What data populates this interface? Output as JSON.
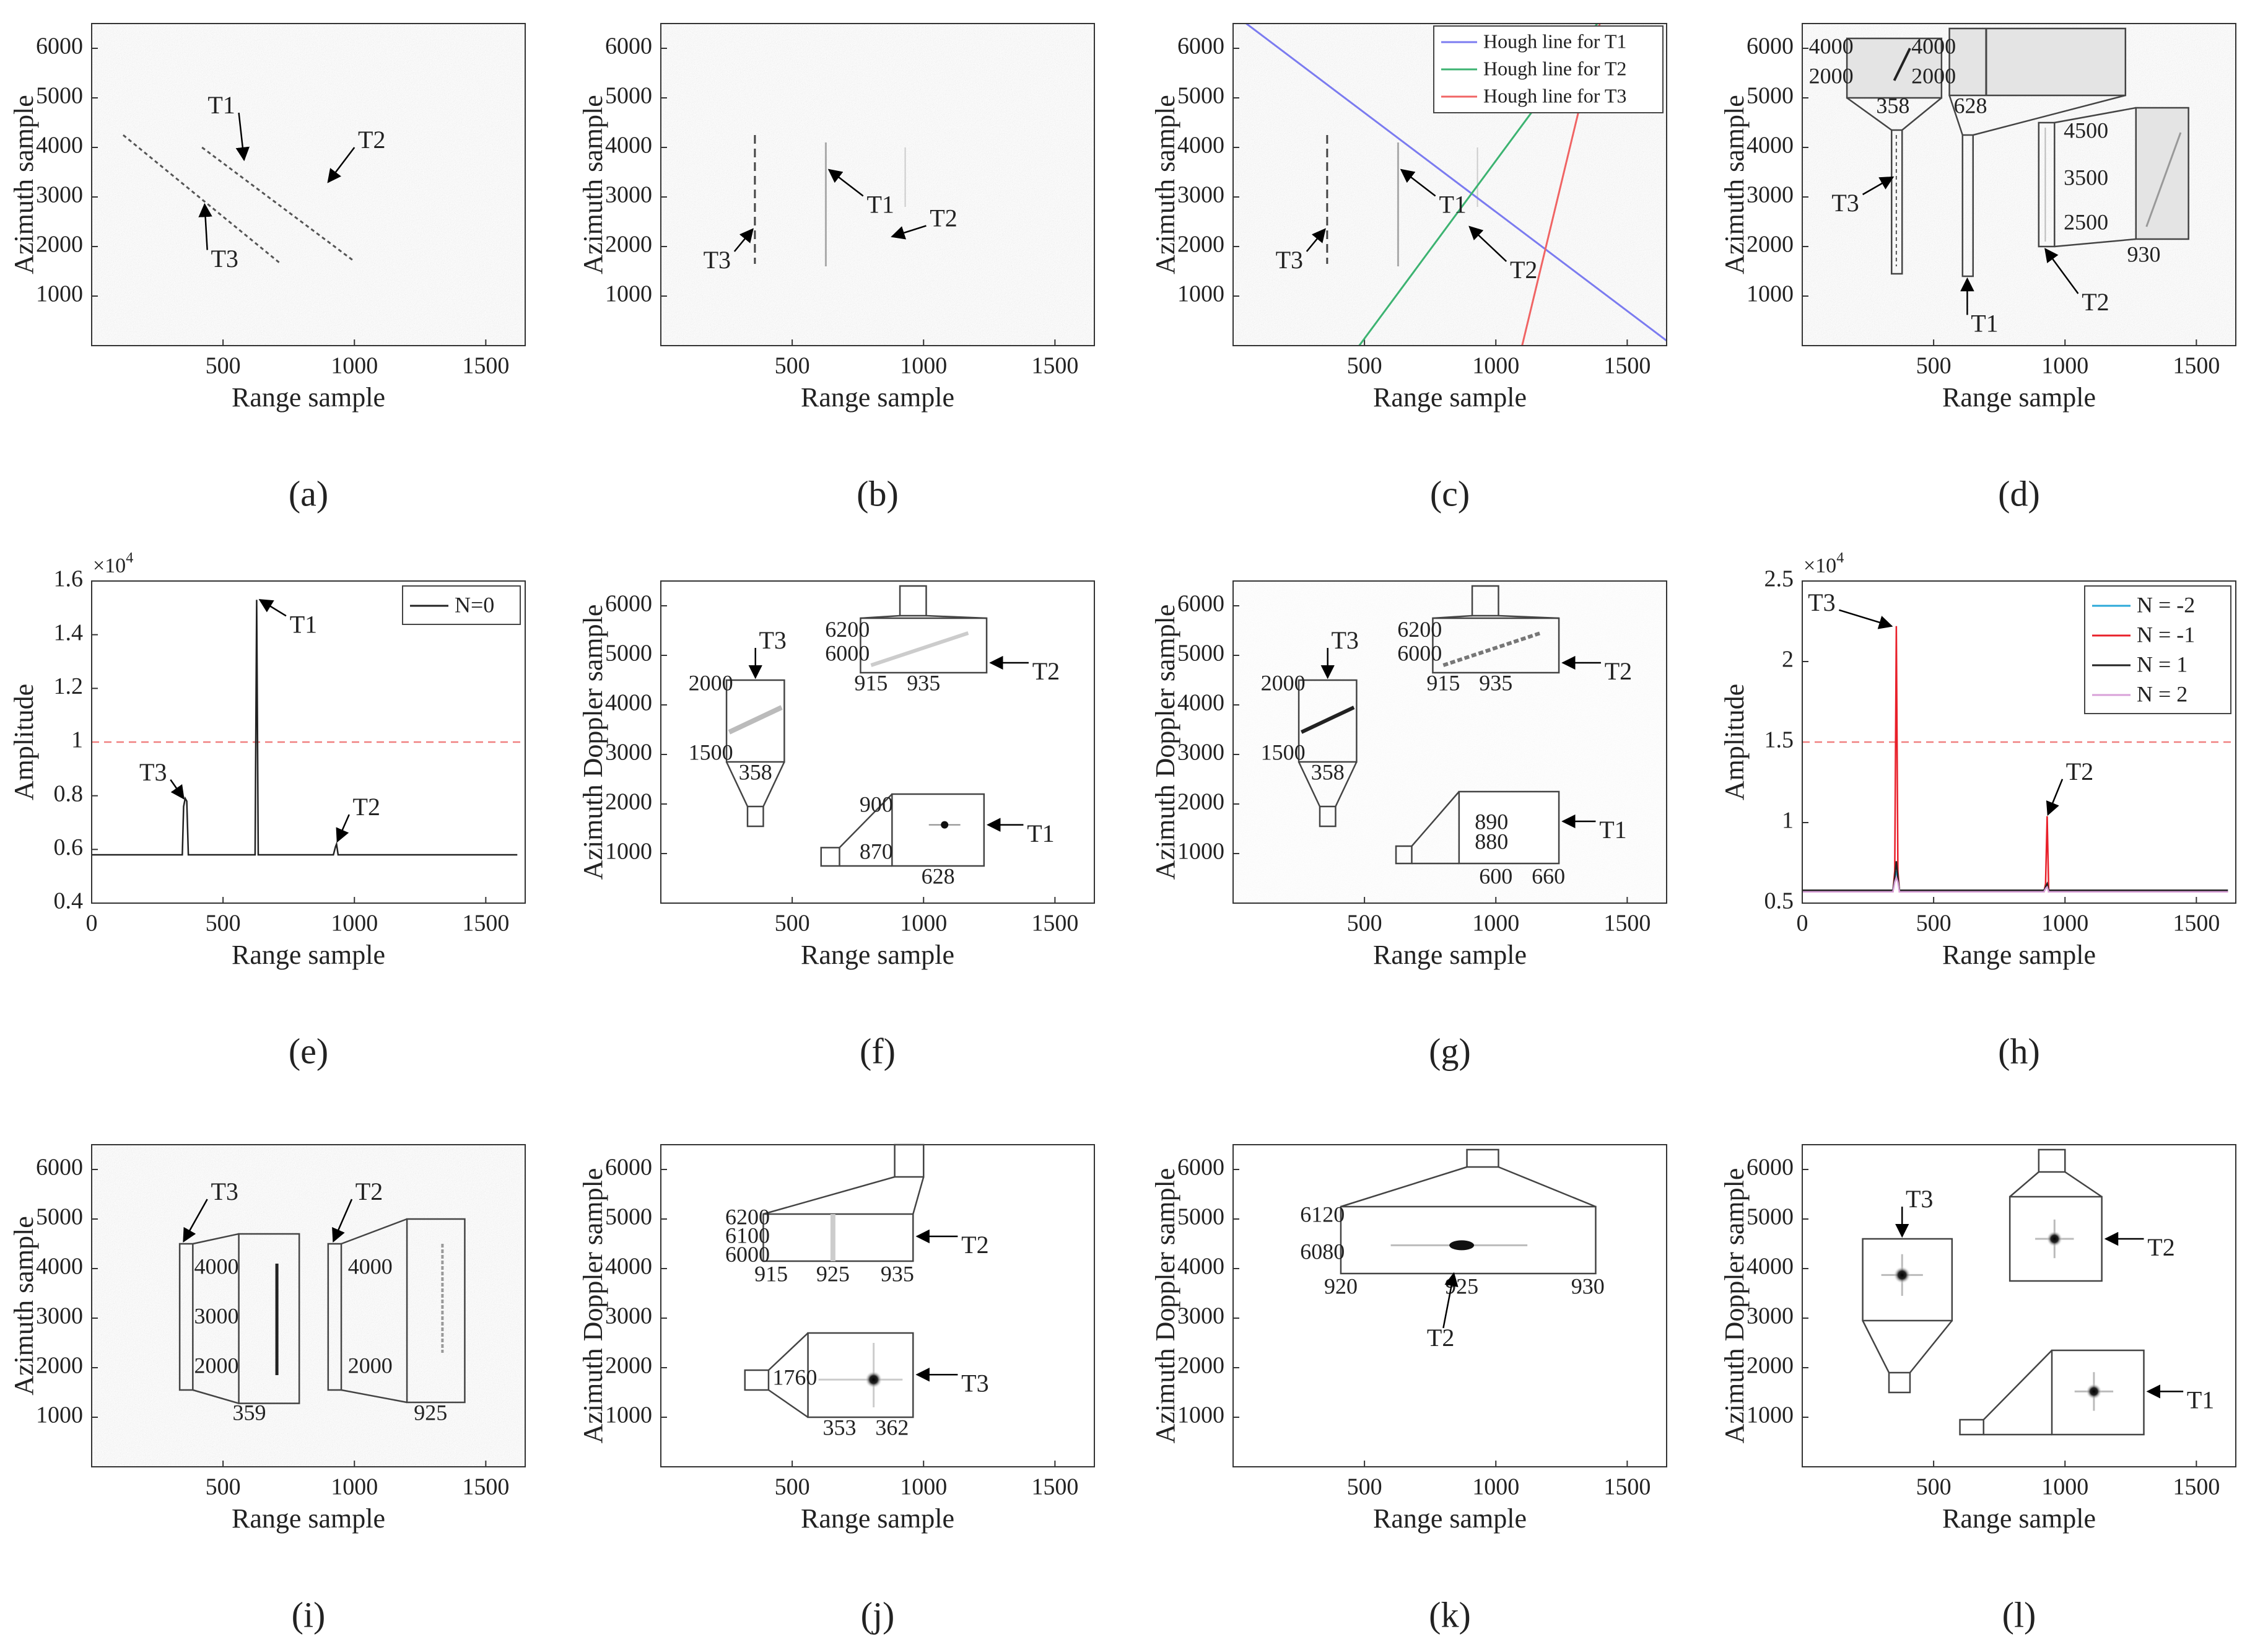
{
  "figure": {
    "panel_letters": [
      "(a)",
      "(b)",
      "(c)",
      "(d)",
      "(e)",
      "(f)",
      "(g)",
      "(h)",
      "(i)",
      "(j)",
      "(k)",
      "(l)"
    ]
  },
  "colors": {
    "noise_bg": "#e0e0e0",
    "threshold": "#f08080",
    "hough_t1": "#7b7bf0",
    "hough_t2": "#3cb371",
    "hough_t3": "#f06464",
    "n_minus2": "#2aa8d8",
    "n_minus1": "#e8202a",
    "n_plus1": "#222222",
    "n_plus2": "#d8a0d8"
  },
  "chart_data": [
    {
      "panel": "a",
      "type": "heatmap",
      "xlabel": "Range sample",
      "ylabel": "Azimuth sample",
      "xlim": [
        0,
        1650
      ],
      "ylim": [
        0,
        6500
      ],
      "xticks": [
        500,
        1000,
        1500
      ],
      "yticks": [
        1000,
        2000,
        3000,
        4000,
        5000,
        6000
      ],
      "background": "noise",
      "traces": [
        {
          "x": [
            120,
            720
          ],
          "y": [
            4250,
            1650
          ]
        },
        {
          "x": [
            420,
            1000
          ],
          "y": [
            4000,
            1700
          ]
        }
      ],
      "annotations": [
        {
          "text": "T1",
          "x": 590,
          "y": 3650
        },
        {
          "text": "T2",
          "x": 940,
          "y": 3350
        },
        {
          "text": "T3",
          "x": 450,
          "y": 2900
        }
      ]
    },
    {
      "panel": "b",
      "type": "heatmap",
      "xlabel": "Range sample",
      "ylabel": "Azimuth sample",
      "xlim": [
        0,
        1650
      ],
      "ylim": [
        0,
        6500
      ],
      "xticks": [
        500,
        1000,
        1500
      ],
      "yticks": [
        1000,
        2000,
        3000,
        4000,
        5000,
        6000
      ],
      "background": "noise",
      "traces": [
        {
          "x": [
            358,
            358
          ],
          "y": [
            1600,
            4250
          ]
        },
        {
          "x": [
            628,
            628
          ],
          "y": [
            1600,
            4000
          ]
        },
        {
          "x": [
            930,
            930
          ],
          "y": [
            2700,
            4000
          ]
        }
      ],
      "annotations": [
        {
          "text": "T1",
          "x": 630,
          "y": 3800
        },
        {
          "text": "T2",
          "x": 930,
          "y": 2400
        },
        {
          "text": "T3",
          "x": 350,
          "y": 2500
        }
      ]
    },
    {
      "panel": "c",
      "type": "heatmap",
      "xlabel": "Range sample",
      "ylabel": "Azimuth sample",
      "xlim": [
        0,
        1650
      ],
      "ylim": [
        0,
        6500
      ],
      "xticks": [
        500,
        1000,
        1500
      ],
      "yticks": [
        1000,
        2000,
        3000,
        4000,
        5000,
        6000
      ],
      "background": "noise",
      "legend": [
        "Hough line for T1",
        "Hough line for T2",
        "Hough line for T3"
      ],
      "legend_position": "top-right",
      "hough_lines": [
        {
          "name": "Hough line for T1",
          "x": [
            0,
            1650
          ],
          "y": [
            6700,
            100
          ]
        },
        {
          "name": "Hough line for T2",
          "x": [
            480,
            1400
          ],
          "y": [
            0,
            6600
          ]
        },
        {
          "name": "Hough line for T3",
          "x": [
            1100,
            1400
          ],
          "y": [
            0,
            6600
          ]
        }
      ],
      "traces": [
        {
          "x": [
            358,
            358
          ],
          "y": [
            1600,
            4250
          ]
        },
        {
          "x": [
            628,
            628
          ],
          "y": [
            1600,
            4200
          ]
        },
        {
          "x": [
            930,
            930
          ],
          "y": [
            2700,
            4000
          ]
        }
      ],
      "annotations": [
        {
          "text": "T1",
          "x": 630,
          "y": 3800
        },
        {
          "text": "T2",
          "x": 930,
          "y": 2400
        },
        {
          "text": "T3",
          "x": 350,
          "y": 2500
        }
      ]
    },
    {
      "panel": "d",
      "type": "heatmap",
      "xlabel": "Range sample",
      "ylabel": "Azimuth sample",
      "xlim": [
        0,
        1650
      ],
      "ylim": [
        0,
        6500
      ],
      "xticks": [
        500,
        1000,
        1500
      ],
      "yticks": [
        1000,
        2000,
        3000,
        4000,
        5000,
        6000
      ],
      "background": "noise",
      "insets": [
        {
          "target": "T3",
          "labels": [
            "4000",
            "2000",
            "358"
          ]
        },
        {
          "target": "T1",
          "labels": [
            "4000",
            "2000",
            "628"
          ]
        },
        {
          "target": "T2",
          "labels": [
            "4500",
            "3500",
            "2500",
            "930"
          ]
        }
      ],
      "annotations": [
        "T3",
        "T1",
        "T2"
      ]
    },
    {
      "panel": "e",
      "type": "line",
      "xlabel": "Range sample",
      "ylabel": "Amplitude",
      "xlim": [
        0,
        1650
      ],
      "ylim": [
        0.4,
        1.6
      ],
      "yscale_label": "×10^4",
      "xticks": [
        0,
        500,
        1000,
        1500
      ],
      "yticks": [
        0.4,
        0.6,
        0.8,
        1,
        1.2,
        1.4,
        1.6
      ],
      "ytick_labels": [
        "0.4",
        "0.6",
        "0.8",
        "1",
        "1.2",
        "1.4",
        "1.6"
      ],
      "threshold": 1.0,
      "series": [
        {
          "name": "N=0",
          "x": [
            0,
            345,
            350,
            356,
            362,
            368,
            610,
            622,
            628,
            634,
            640,
            920,
            928,
            932,
            938,
            1620
          ],
          "y": [
            0.58,
            0.58,
            0.76,
            0.79,
            0.78,
            0.58,
            0.58,
            0.58,
            1.53,
            0.58,
            0.58,
            0.58,
            0.61,
            0.62,
            0.58,
            0.58
          ]
        }
      ],
      "legend": [
        "N=0"
      ],
      "legend_position": "top-right",
      "annotations": [
        {
          "text": "T1",
          "x": 628,
          "y": 1.53
        },
        {
          "text": "T3",
          "x": 356,
          "y": 0.79
        },
        {
          "text": "T2",
          "x": 930,
          "y": 0.62
        }
      ]
    },
    {
      "panel": "f",
      "type": "heatmap",
      "xlabel": "Range sample",
      "ylabel": "Azimuth Doppler sample",
      "xlim": [
        0,
        1650
      ],
      "ylim": [
        0,
        6500
      ],
      "xticks": [
        500,
        1000,
        1500
      ],
      "yticks": [
        1000,
        2000,
        3000,
        4000,
        5000,
        6000
      ],
      "background": "white",
      "insets": [
        {
          "target": "T3",
          "labels": [
            "2000",
            "1500",
            "358"
          ]
        },
        {
          "target": "T2",
          "labels": [
            "6200",
            "6000",
            "915",
            "935"
          ]
        },
        {
          "target": "T1",
          "labels": [
            "900",
            "870",
            "628"
          ]
        }
      ],
      "annotations": [
        "T3",
        "T2",
        "T1"
      ]
    },
    {
      "panel": "g",
      "type": "heatmap",
      "xlabel": "Range sample",
      "ylabel": "Azimuth Doppler sample",
      "xlim": [
        0,
        1650
      ],
      "ylim": [
        0,
        6500
      ],
      "xticks": [
        500,
        1000,
        1500
      ],
      "yticks": [
        1000,
        2000,
        3000,
        4000,
        5000,
        6000
      ],
      "background": "noise-light",
      "insets": [
        {
          "target": "T3",
          "labels": [
            "2000",
            "1500",
            "358"
          ]
        },
        {
          "target": "T2",
          "labels": [
            "6200",
            "6000",
            "915",
            "935"
          ]
        },
        {
          "target": "T1",
          "labels": [
            "890",
            "880",
            "600",
            "660"
          ]
        }
      ],
      "annotations": [
        "T3",
        "T2",
        "T1"
      ]
    },
    {
      "panel": "h",
      "type": "line",
      "xlabel": "Range sample",
      "ylabel": "Amplitude",
      "xlim": [
        0,
        1650
      ],
      "ylim": [
        0.5,
        2.5
      ],
      "yscale_label": "×10^4",
      "xticks": [
        0,
        500,
        1000,
        1500
      ],
      "yticks": [
        0.5,
        1,
        1.5,
        2,
        2.5
      ],
      "ytick_labels": [
        "0.5",
        "1",
        "1.5",
        "2",
        "2.5"
      ],
      "threshold": 1.5,
      "series": [
        {
          "name": "N = -2",
          "x": [
            0,
            345,
            352,
            358,
            364,
            370,
            920,
            926,
            932,
            938,
            1620
          ],
          "y": [
            0.58,
            0.58,
            0.65,
            0.7,
            0.65,
            0.58,
            0.58,
            0.6,
            0.62,
            0.58,
            0.58
          ]
        },
        {
          "name": "N = -1",
          "x": [
            0,
            345,
            352,
            358,
            364,
            370,
            920,
            926,
            932,
            938,
            1620
          ],
          "y": [
            0.57,
            0.57,
            0.7,
            2.22,
            0.7,
            0.57,
            0.57,
            0.62,
            1.04,
            0.57,
            0.57
          ]
        },
        {
          "name": "N = 1",
          "x": [
            0,
            345,
            352,
            358,
            364,
            370,
            920,
            926,
            932,
            938,
            1620
          ],
          "y": [
            0.58,
            0.58,
            0.66,
            0.76,
            0.66,
            0.58,
            0.58,
            0.6,
            0.62,
            0.58,
            0.58
          ]
        },
        {
          "name": "N = 2",
          "x": [
            0,
            345,
            352,
            358,
            364,
            370,
            920,
            926,
            932,
            938,
            1620
          ],
          "y": [
            0.57,
            0.57,
            0.63,
            0.66,
            0.63,
            0.57,
            0.57,
            0.59,
            0.6,
            0.57,
            0.57
          ]
        }
      ],
      "legend": [
        "N = -2",
        "N = -1",
        "N = 1",
        "N = 2"
      ],
      "legend_position": "top-right",
      "annotations": [
        {
          "text": "T3",
          "x": 358,
          "y": 2.22
        },
        {
          "text": "T2",
          "x": 932,
          "y": 1.04
        }
      ]
    },
    {
      "panel": "i",
      "type": "heatmap",
      "xlabel": "Range sample",
      "ylabel": "Azimuth sample",
      "xlim": [
        0,
        1650
      ],
      "ylim": [
        0,
        6500
      ],
      "xticks": [
        500,
        1000,
        1500
      ],
      "yticks": [
        1000,
        2000,
        3000,
        4000,
        5000,
        6000
      ],
      "background": "noise",
      "insets": [
        {
          "target": "T3",
          "labels": [
            "4000",
            "3000",
            "2000",
            "359"
          ]
        },
        {
          "target": "T2",
          "labels": [
            "4000",
            "2000",
            "925"
          ]
        }
      ],
      "annotations": [
        "T3",
        "T2"
      ]
    },
    {
      "panel": "j",
      "type": "heatmap",
      "xlabel": "Range sample",
      "ylabel": "Azimuth Doppler sample",
      "xlim": [
        0,
        1650
      ],
      "ylim": [
        0,
        6500
      ],
      "xticks": [
        500,
        1000,
        1500
      ],
      "yticks": [
        1000,
        2000,
        3000,
        4000,
        5000,
        6000
      ],
      "background": "white",
      "insets": [
        {
          "target": "T2",
          "labels": [
            "6200",
            "6100",
            "6000",
            "915",
            "925",
            "935"
          ]
        },
        {
          "target": "T3",
          "labels": [
            "1760",
            "353",
            "362"
          ]
        }
      ],
      "annotations": [
        "T2",
        "T3"
      ]
    },
    {
      "panel": "k",
      "type": "heatmap",
      "xlabel": "Range sample",
      "ylabel": "Azimuth Doppler sample",
      "xlim": [
        0,
        1650
      ],
      "ylim": [
        0,
        6500
      ],
      "xticks": [
        500,
        1000,
        1500
      ],
      "yticks": [
        1000,
        2000,
        3000,
        4000,
        5000,
        6000
      ],
      "background": "white",
      "insets": [
        {
          "target": "T2",
          "labels": [
            "6120",
            "6080",
            "920",
            "925",
            "930"
          ]
        }
      ],
      "annotations": [
        "T2"
      ]
    },
    {
      "panel": "l",
      "type": "heatmap",
      "xlabel": "Range sample",
      "ylabel": "Azimuth Doppler sample",
      "xlim": [
        0,
        1650
      ],
      "ylim": [
        0,
        6500
      ],
      "xticks": [
        500,
        1000,
        1500
      ],
      "yticks": [
        1000,
        2000,
        3000,
        4000,
        5000,
        6000
      ],
      "background": "white",
      "insets": [
        {
          "target": "T3",
          "labels": []
        },
        {
          "target": "T2",
          "labels": []
        },
        {
          "target": "T1",
          "labels": []
        }
      ],
      "annotations": [
        "T3",
        "T2",
        "T1"
      ]
    }
  ]
}
